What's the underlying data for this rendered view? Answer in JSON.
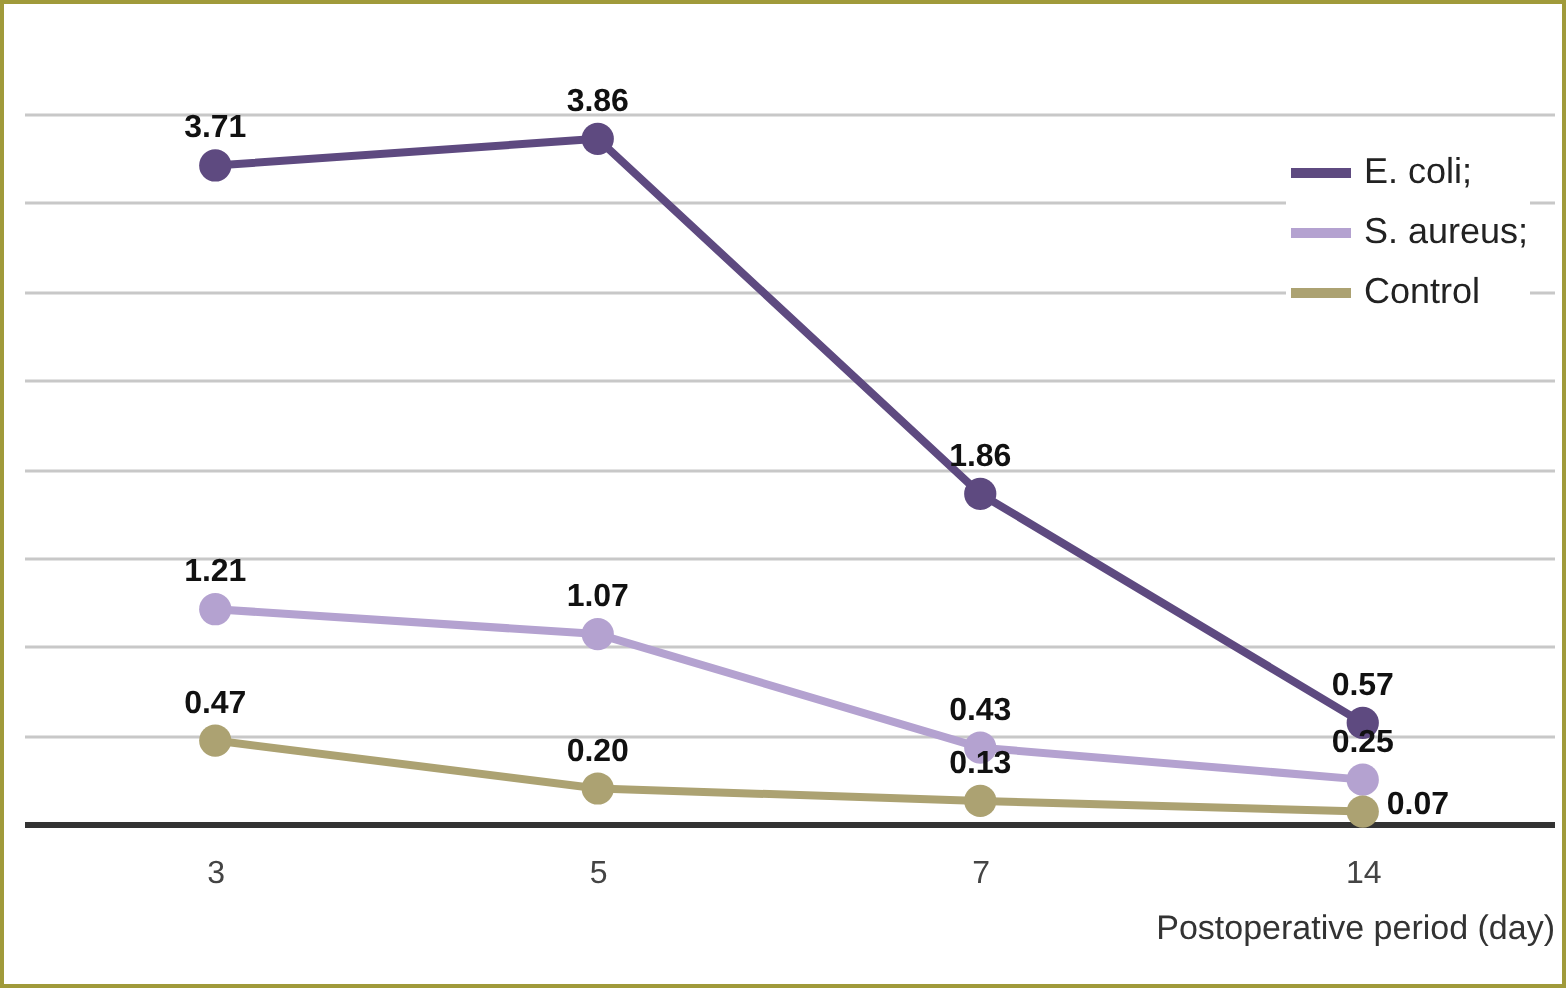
{
  "chart_data": {
    "type": "line",
    "xlabel": "Postoperative period (day)",
    "categories": [
      "3",
      "5",
      "7",
      "14"
    ],
    "series": [
      {
        "name": "E. coli;",
        "color": "#5e4a80",
        "values": [
          3.71,
          3.86,
          1.86,
          0.57
        ],
        "value_labels": [
          "3.71",
          "3.86",
          "1.86",
          "0.57"
        ]
      },
      {
        "name": "S. aureus;",
        "color": "#b4a2d0",
        "values": [
          1.21,
          1.07,
          0.43,
          0.25
        ],
        "value_labels": [
          "1.21",
          "1.07",
          "0.43",
          "0.25"
        ]
      },
      {
        "name": "Control",
        "color": "#aca272",
        "values": [
          0.47,
          0.2,
          0.13,
          0.07
        ],
        "value_labels": [
          "0.47",
          "0.20",
          "0.13",
          "0.07"
        ]
      }
    ],
    "ylim": [
      0,
      4
    ],
    "yticks": [
      {
        "value": 0,
        "label": null
      },
      {
        "value": 0.5,
        "label": null
      },
      {
        "value": 1,
        "label": null
      },
      {
        "value": 1.5,
        "label": null
      },
      {
        "value": 2,
        "label": null
      },
      {
        "value": 2.5,
        "label": null
      },
      {
        "value": 3,
        "label": null
      },
      {
        "value": 3.5,
        "label": null
      },
      {
        "value": 4,
        "label": null
      }
    ],
    "grid": "y",
    "tick_labels": "x",
    "legend": "top right",
    "marker": "circle",
    "line_style": "solid"
  }
}
